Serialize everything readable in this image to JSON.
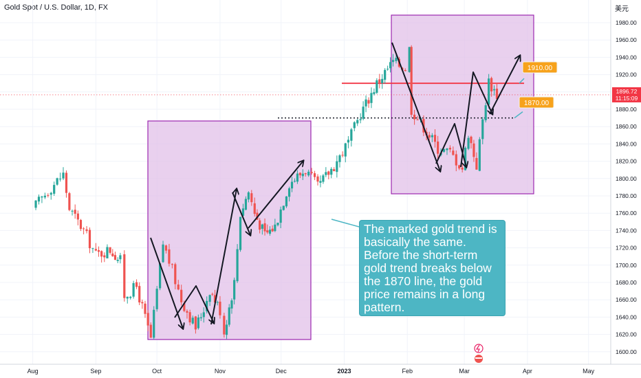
{
  "header": {
    "title": "Gold Spot / U.S. Dollar, 1D, FX",
    "currency": "美元"
  },
  "price_axis": {
    "ticks": [
      "1980.00",
      "1960.00",
      "1940.00",
      "1920.00",
      "1900.00",
      "1880.00",
      "1860.00",
      "1840.00",
      "1820.00",
      "1800.00",
      "1780.00",
      "1760.00",
      "1740.00",
      "1720.00",
      "1700.00",
      "1680.00",
      "1660.00",
      "1640.00",
      "1620.00",
      "1600.00"
    ],
    "last_price": "1896.72",
    "countdown": "11:15:09"
  },
  "time_axis": {
    "labels": [
      "Aug",
      "Sep",
      "Oct",
      "Nov",
      "Dec",
      "2023",
      "Feb",
      "Mar",
      "Apr",
      "May"
    ]
  },
  "annotations": {
    "level_high": "1910.00",
    "level_low": "1870.00",
    "callout": "The marked gold trend is basically the same. Before the short-term gold trend breaks below the 1870 line, the gold price remains in a long pattern."
  },
  "colors": {
    "up": "#26a69a",
    "down": "#ef5350",
    "box_fill": "#e1bee7",
    "box_border": "#9c27b0",
    "resistance": "#f23645",
    "price_badge": "#f23645",
    "label_badge": "#f7a21b",
    "callout_bg": "#4db6c4"
  },
  "chart_data": {
    "type": "candlestick",
    "title": "Gold Spot / U.S. Dollar, 1D, FX",
    "ylim": [
      1590,
      1990
    ],
    "x_labels": [
      "Aug",
      "Sep",
      "Oct",
      "Nov",
      "Dec",
      "2023",
      "Feb",
      "Mar",
      "Apr",
      "May"
    ],
    "close_path": [
      {
        "date": "2022-08-01",
        "close": 1765
      },
      {
        "date": "2022-08-10",
        "close": 1790
      },
      {
        "date": "2022-08-16",
        "close": 1805
      },
      {
        "date": "2022-08-19",
        "close": 1765
      },
      {
        "date": "2022-08-26",
        "close": 1740
      },
      {
        "date": "2022-09-01",
        "close": 1712
      },
      {
        "date": "2022-09-08",
        "close": 1718
      },
      {
        "date": "2022-09-13",
        "close": 1705
      },
      {
        "date": "2022-09-15",
        "close": 1665
      },
      {
        "date": "2022-09-21",
        "close": 1675
      },
      {
        "date": "2022-09-28",
        "close": 1615
      },
      {
        "date": "2022-10-04",
        "close": 1725
      },
      {
        "date": "2022-10-07",
        "close": 1705
      },
      {
        "date": "2022-10-13",
        "close": 1660
      },
      {
        "date": "2022-10-20",
        "close": 1628
      },
      {
        "date": "2022-10-24",
        "close": 1650
      },
      {
        "date": "2022-10-27",
        "close": 1672
      },
      {
        "date": "2022-11-01",
        "close": 1648
      },
      {
        "date": "2022-11-03",
        "close": 1623
      },
      {
        "date": "2022-11-08",
        "close": 1680
      },
      {
        "date": "2022-11-11",
        "close": 1760
      },
      {
        "date": "2022-11-15",
        "close": 1785
      },
      {
        "date": "2022-11-18",
        "close": 1760
      },
      {
        "date": "2022-11-23",
        "close": 1735
      },
      {
        "date": "2022-11-28",
        "close": 1745
      },
      {
        "date": "2022-12-05",
        "close": 1795
      },
      {
        "date": "2022-12-13",
        "close": 1810
      },
      {
        "date": "2022-12-19",
        "close": 1790
      },
      {
        "date": "2022-12-27",
        "close": 1815
      },
      {
        "date": "2023-01-03",
        "close": 1842
      },
      {
        "date": "2023-01-09",
        "close": 1875
      },
      {
        "date": "2023-01-17",
        "close": 1910
      },
      {
        "date": "2023-01-25",
        "close": 1935
      },
      {
        "date": "2023-01-31",
        "close": 1928
      },
      {
        "date": "2023-02-02",
        "close": 1950
      },
      {
        "date": "2023-02-03",
        "close": 1880
      },
      {
        "date": "2023-02-09",
        "close": 1860
      },
      {
        "date": "2023-02-16",
        "close": 1835
      },
      {
        "date": "2023-02-22",
        "close": 1830
      },
      {
        "date": "2023-02-28",
        "close": 1812
      },
      {
        "date": "2023-03-03",
        "close": 1853
      },
      {
        "date": "2023-03-07",
        "close": 1815
      },
      {
        "date": "2023-03-10",
        "close": 1868
      },
      {
        "date": "2023-03-13",
        "close": 1912
      },
      {
        "date": "2023-03-17",
        "close": 1897
      }
    ],
    "levels": [
      1910,
      1870
    ],
    "last_price": 1896.72
  }
}
